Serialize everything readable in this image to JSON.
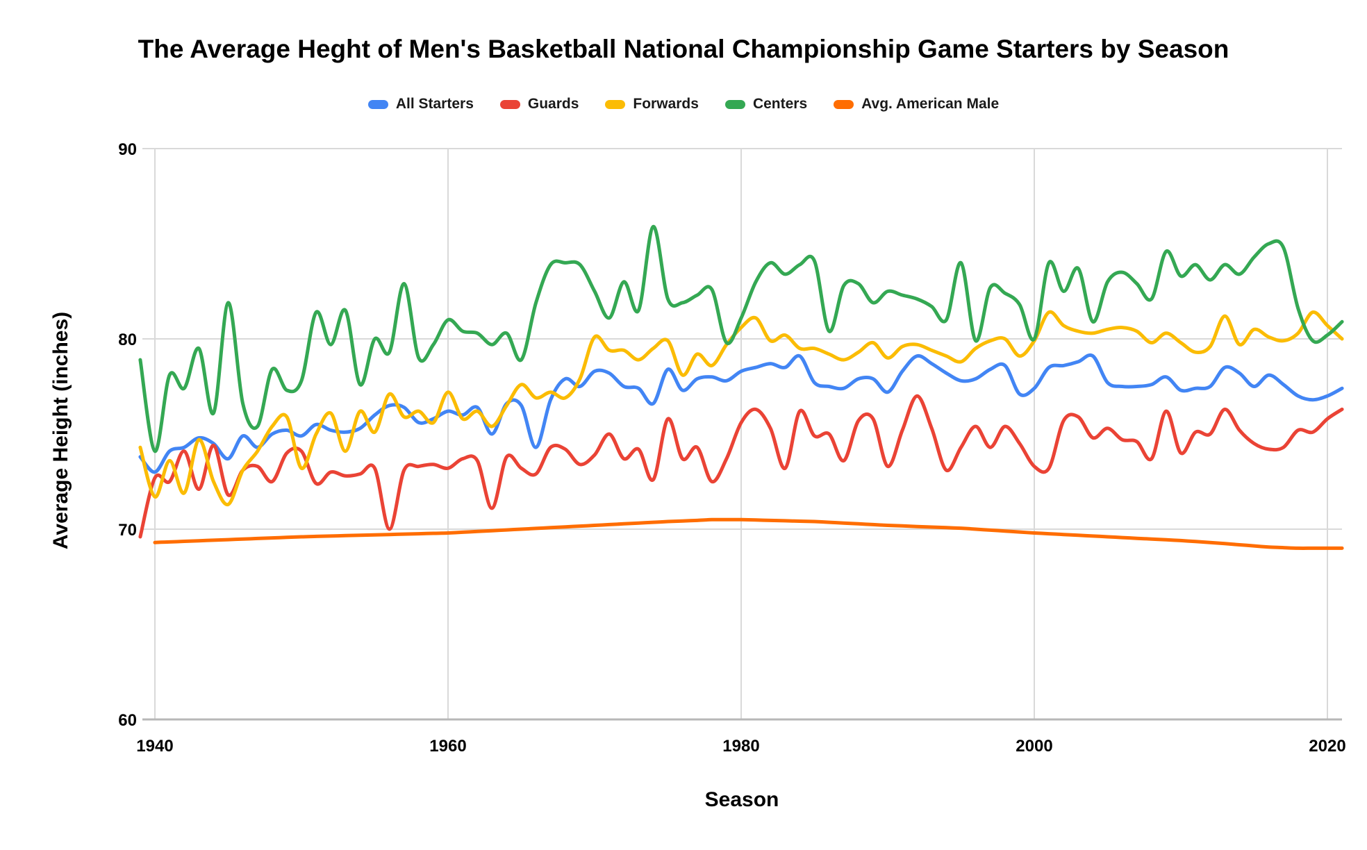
{
  "title": "The Average Heght of Men's Basketball National Championship Game Starters by Season",
  "chart_data": {
    "type": "line",
    "title": "The Average Heght of Men's Basketball National Championship Game Starters by Season",
    "xlabel": "Season",
    "ylabel": "Average Height (inches)",
    "grid": true,
    "smooth": true,
    "legend_position": "top",
    "line_width": 5,
    "xlim": [
      1939,
      2021.5
    ],
    "ylim": [
      60,
      90
    ],
    "x_ticks": [
      1940,
      1960,
      1980,
      2000,
      2020
    ],
    "y_ticks": [
      60,
      70,
      80,
      90
    ],
    "gridline_color": "#d9d9d9",
    "baseline_color": "#b7b7b7",
    "years": [
      1939,
      1940,
      1941,
      1942,
      1943,
      1944,
      1945,
      1946,
      1947,
      1948,
      1949,
      1950,
      1951,
      1952,
      1953,
      1954,
      1955,
      1956,
      1957,
      1958,
      1959,
      1960,
      1961,
      1962,
      1963,
      1964,
      1965,
      1966,
      1967,
      1968,
      1969,
      1970,
      1971,
      1972,
      1973,
      1974,
      1975,
      1976,
      1977,
      1978,
      1979,
      1980,
      1981,
      1982,
      1983,
      1984,
      1985,
      1986,
      1987,
      1988,
      1989,
      1990,
      1991,
      1992,
      1993,
      1994,
      1995,
      1996,
      1997,
      1998,
      1999,
      2000,
      2001,
      2002,
      2003,
      2004,
      2005,
      2006,
      2007,
      2008,
      2009,
      2010,
      2011,
      2012,
      2013,
      2014,
      2015,
      2016,
      2017,
      2018,
      2019,
      2020,
      2021
    ],
    "series": [
      {
        "name": "All Starters",
        "color": "#4285F4",
        "values": [
          73.8,
          73.0,
          74.1,
          74.3,
          74.8,
          74.5,
          73.7,
          74.9,
          74.3,
          75.0,
          75.2,
          74.9,
          75.5,
          75.2,
          75.1,
          75.3,
          76.0,
          76.5,
          76.4,
          75.6,
          75.8,
          76.2,
          76.0,
          76.4,
          75.0,
          76.6,
          76.5,
          74.3,
          76.8,
          77.9,
          77.5,
          78.3,
          78.2,
          77.5,
          77.4,
          76.6,
          78.4,
          77.3,
          77.9,
          78.0,
          77.8,
          78.3,
          78.5,
          78.7,
          78.5,
          79.1,
          77.7,
          77.5,
          77.4,
          77.9,
          77.9,
          77.2,
          78.3,
          79.1,
          78.7,
          78.2,
          77.8,
          77.9,
          78.4,
          78.6,
          77.1,
          77.4,
          78.5,
          78.6,
          78.8,
          79.1,
          77.7,
          77.5,
          77.5,
          77.6,
          78.0,
          77.3,
          77.4,
          77.5,
          78.5,
          78.2,
          77.5,
          78.1,
          77.6,
          77.0,
          76.8,
          77.0,
          77.4
        ]
      },
      {
        "name": "Guards",
        "color": "#EA4335",
        "values": [
          69.6,
          72.7,
          72.5,
          74.1,
          72.1,
          74.4,
          71.8,
          73.1,
          73.3,
          72.5,
          74.0,
          74.1,
          72.4,
          73.0,
          72.8,
          72.9,
          73.2,
          70.0,
          73.1,
          73.3,
          73.4,
          73.2,
          73.7,
          73.6,
          71.1,
          73.8,
          73.2,
          72.9,
          74.3,
          74.2,
          73.4,
          73.9,
          75.0,
          73.7,
          74.2,
          72.6,
          75.8,
          73.7,
          74.3,
          72.5,
          73.7,
          75.6,
          76.3,
          75.3,
          73.2,
          76.2,
          74.9,
          75.0,
          73.6,
          75.7,
          75.8,
          73.3,
          75.2,
          77.0,
          75.3,
          73.1,
          74.3,
          75.4,
          74.3,
          75.4,
          74.5,
          73.3,
          73.2,
          75.7,
          75.9,
          74.8,
          75.3,
          74.7,
          74.6,
          73.7,
          76.2,
          74.0,
          75.1,
          75.0,
          76.3,
          75.2,
          74.5,
          74.2,
          74.3,
          75.2,
          75.1,
          75.8,
          76.3
        ]
      },
      {
        "name": "Forwards",
        "color": "#FBBC04",
        "values": [
          74.3,
          71.7,
          73.6,
          71.9,
          74.7,
          72.5,
          71.3,
          73.1,
          74.1,
          75.4,
          75.9,
          73.2,
          75.0,
          76.1,
          74.1,
          76.2,
          75.1,
          77.1,
          75.9,
          76.2,
          75.6,
          77.2,
          75.8,
          76.2,
          75.4,
          76.5,
          77.6,
          76.9,
          77.2,
          76.9,
          77.9,
          80.1,
          79.4,
          79.4,
          78.9,
          79.5,
          79.9,
          78.1,
          79.2,
          78.6,
          79.7,
          80.6,
          81.1,
          79.9,
          80.2,
          79.5,
          79.5,
          79.2,
          78.9,
          79.3,
          79.8,
          79.0,
          79.6,
          79.7,
          79.4,
          79.1,
          78.8,
          79.5,
          79.9,
          80.0,
          79.1,
          79.9,
          81.4,
          80.7,
          80.4,
          80.3,
          80.5,
          80.6,
          80.4,
          79.8,
          80.3,
          79.8,
          79.3,
          79.6,
          81.2,
          79.7,
          80.5,
          80.1,
          79.9,
          80.3,
          81.4,
          80.7,
          80.0
        ]
      },
      {
        "name": "Centers",
        "color": "#34A853",
        "values": [
          78.9,
          74.1,
          78.1,
          77.4,
          79.5,
          76.1,
          81.9,
          76.6,
          75.4,
          78.4,
          77.3,
          77.8,
          81.4,
          79.7,
          81.5,
          77.6,
          80.0,
          79.3,
          82.9,
          79.0,
          79.7,
          81.0,
          80.4,
          80.3,
          79.7,
          80.3,
          78.9,
          81.9,
          83.9,
          84.0,
          83.9,
          82.5,
          81.1,
          83.0,
          81.5,
          85.9,
          82.1,
          81.9,
          82.3,
          82.6,
          79.8,
          81.1,
          83.0,
          84.0,
          83.4,
          83.9,
          84.1,
          80.4,
          82.8,
          82.9,
          81.9,
          82.5,
          82.3,
          82.1,
          81.7,
          81.0,
          84.0,
          79.9,
          82.7,
          82.4,
          81.8,
          80.0,
          84.0,
          82.5,
          83.7,
          80.9,
          83.0,
          83.5,
          82.9,
          82.1,
          84.6,
          83.3,
          83.9,
          83.1,
          83.9,
          83.4,
          84.3,
          85.0,
          84.8,
          81.6,
          79.9,
          80.2,
          80.9
        ]
      },
      {
        "name": "Avg. American Male",
        "color": "#FF6D01",
        "values": [
          null,
          69.3,
          69.33,
          69.36,
          69.39,
          69.42,
          69.45,
          69.48,
          69.51,
          69.54,
          69.57,
          69.6,
          69.62,
          69.64,
          69.66,
          69.68,
          69.7,
          69.72,
          69.74,
          69.76,
          69.78,
          69.8,
          69.84,
          69.88,
          69.92,
          69.96,
          70.0,
          70.04,
          70.08,
          70.12,
          70.16,
          70.2,
          70.24,
          70.28,
          70.32,
          70.36,
          70.4,
          70.43,
          70.46,
          70.5,
          70.5,
          70.5,
          70.48,
          70.46,
          70.44,
          70.42,
          70.4,
          70.36,
          70.32,
          70.28,
          70.24,
          70.2,
          70.17,
          70.14,
          70.11,
          70.08,
          70.05,
          70.0,
          69.95,
          69.9,
          69.85,
          69.8,
          69.76,
          69.72,
          69.68,
          69.64,
          69.6,
          69.56,
          69.52,
          69.48,
          69.44,
          69.4,
          69.35,
          69.3,
          69.24,
          69.18,
          69.12,
          69.06,
          69.03,
          69.0,
          69.0,
          69.0,
          69.0
        ]
      }
    ]
  }
}
